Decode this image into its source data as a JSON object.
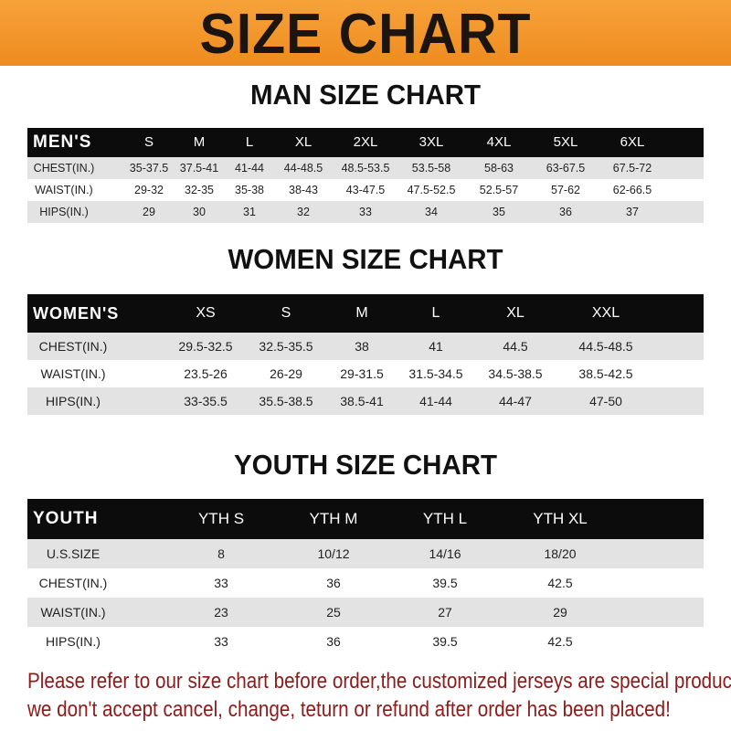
{
  "banner": {
    "title": "SIZE CHART",
    "color": "#f39a2e"
  },
  "men": {
    "title": "MAN SIZE CHART",
    "header": [
      "MEN'S",
      "S",
      "M",
      "L",
      "XL",
      "2XL",
      "3XL",
      "4XL",
      "5XL",
      "6XL"
    ],
    "rows": [
      [
        "CHEST(IN.)",
        "35-37.5",
        "37.5-41",
        "41-44",
        "44-48.5",
        "48.5-53.5",
        "53.5-58",
        "58-63",
        "63-67.5",
        "67.5-72"
      ],
      [
        "WAIST(IN.)",
        "29-32",
        "32-35",
        "35-38",
        "38-43",
        "43-47.5",
        "47.5-52.5",
        "52.5-57",
        "57-62",
        "62-66.5"
      ],
      [
        "HIPS(IN.)",
        "29",
        "30",
        "31",
        "32",
        "33",
        "34",
        "35",
        "36",
        "37"
      ]
    ]
  },
  "women": {
    "title": "WOMEN SIZE CHART",
    "header": [
      "WOMEN'S",
      "XS",
      "S",
      "M",
      "L",
      "XL",
      "XXL"
    ],
    "rows": [
      [
        "CHEST(IN.)",
        "29.5-32.5",
        "32.5-35.5",
        "38",
        "41",
        "44.5",
        "44.5-48.5"
      ],
      [
        "WAIST(IN.)",
        "23.5-26",
        "26-29",
        "29-31.5",
        "31.5-34.5",
        "34.5-38.5",
        "38.5-42.5"
      ],
      [
        "HIPS(IN.)",
        "33-35.5",
        "35.5-38.5",
        "38.5-41",
        "41-44",
        "44-47",
        "47-50"
      ]
    ]
  },
  "youth": {
    "title": "YOUTH SIZE CHART",
    "header": [
      "YOUTH",
      "YTH S",
      "YTH M",
      "YTH L",
      "YTH XL"
    ],
    "rows": [
      [
        "U.S.SIZE",
        "8",
        "10/12",
        "14/16",
        "18/20"
      ],
      [
        "CHEST(IN.)",
        "33",
        "36",
        "39.5",
        "42.5"
      ],
      [
        "WAIST(IN.)",
        "23",
        "25",
        "27",
        "29"
      ],
      [
        "HIPS(IN.)",
        "33",
        "36",
        "39.5",
        "42.5"
      ]
    ]
  },
  "notice": {
    "line1": "Please refer to our size chart before order,the customized jerseys are special products,",
    "line2": "we don't accept cancel, change, teturn or refund after order has been placed!",
    "color": "#8e1a1a"
  }
}
